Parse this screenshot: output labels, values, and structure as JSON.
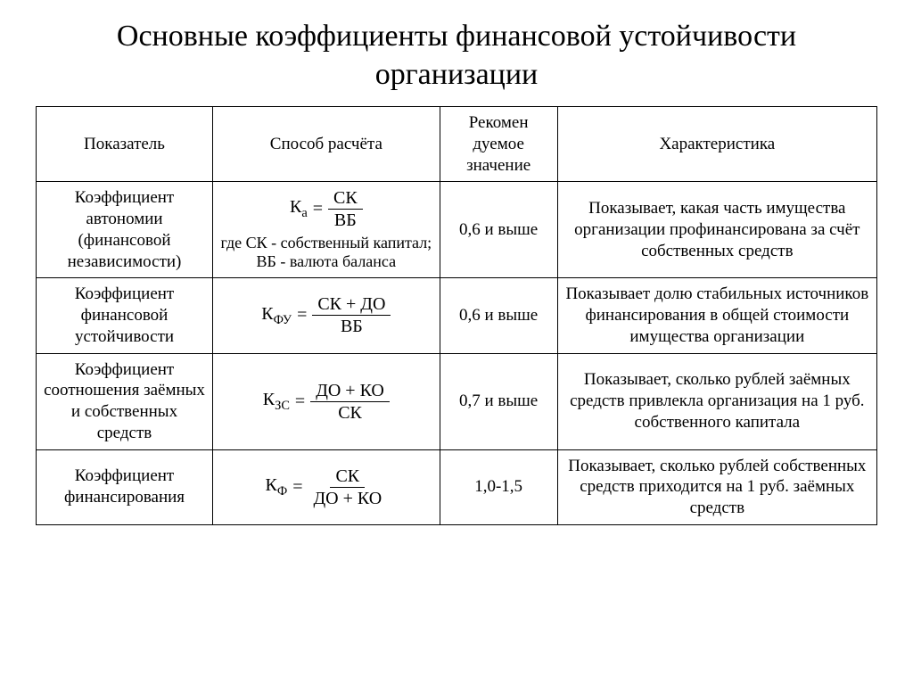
{
  "title": "Основные коэффициенты финансовой устойчивости организации",
  "table": {
    "headers": {
      "indicator": "Показатель",
      "method": "Способ расчёта",
      "recommended": "Рекомен дуемое значение",
      "description": "Характеристика"
    },
    "rows": [
      {
        "indicator": "Коэффициент автономии (финансовой независимости)",
        "formula": {
          "lhs": "К",
          "sub": "а",
          "num": "СК",
          "den": "ВБ"
        },
        "formula_note": "где СК - собственный капитал; ВБ - валюта баланса",
        "recommended": "0,6 и выше",
        "description": "Показывает, какая часть имущества организации профинансирована за счёт собственных средств"
      },
      {
        "indicator": "Коэффициент финансовой устойчивости",
        "formula": {
          "lhs": "К",
          "sub": "ФУ",
          "num": "СК + ДО",
          "den": "ВБ"
        },
        "formula_note": "",
        "recommended": "0,6 и выше",
        "description": "Показывает долю стабильных источников финансирования в общей стоимости имущества организации"
      },
      {
        "indicator": "Коэффициент соотношения заёмных и собственных средств",
        "formula": {
          "lhs": "К",
          "sub": "ЗС",
          "num": "ДО + КО",
          "den": "СК"
        },
        "formula_note": "",
        "recommended": "0,7 и выше",
        "description": "Показывает, сколько рублей заёмных средств привлекла организация на 1 руб. собственного капитала"
      },
      {
        "indicator": "Коэффициент финансирования",
        "formula": {
          "lhs": "К",
          "sub": "Ф",
          "num": "СК",
          "den": "ДО + КО"
        },
        "formula_note": "",
        "recommended": "1,0-1,5",
        "description": "Показывает, сколько рублей собственных средств приходится на 1 руб. заёмных средств"
      }
    ]
  },
  "style": {
    "text_color": "#000000",
    "background_color": "#ffffff",
    "border_color": "#000000",
    "title_fontsize": 34,
    "cell_fontsize": 19,
    "formula_fontsize": 20,
    "font_family": "Times New Roman",
    "column_widths_pct": [
      21,
      27,
      14,
      38
    ]
  }
}
